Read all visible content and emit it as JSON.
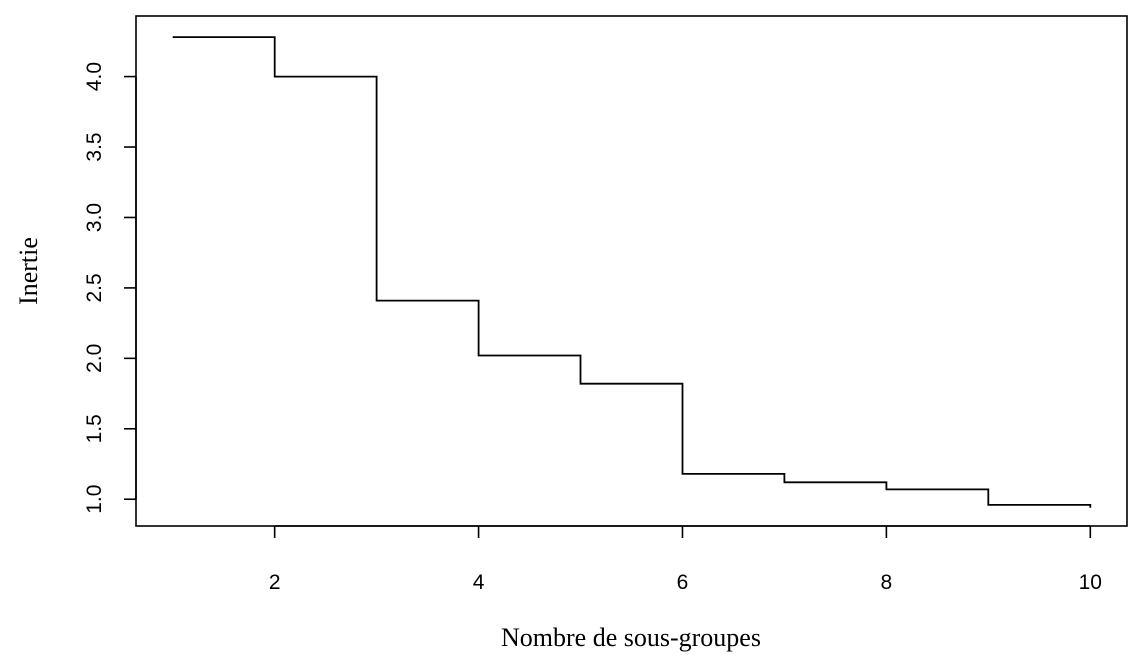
{
  "chart_data": {
    "type": "line",
    "step": true,
    "title": "",
    "xlabel": "Nombre de sous-groupes",
    "ylabel": "Inertie",
    "x": [
      1,
      2,
      3,
      4,
      5,
      6,
      7,
      8,
      9,
      10
    ],
    "y": [
      4.28,
      4.0,
      2.41,
      2.02,
      1.82,
      1.18,
      1.12,
      1.07,
      0.96,
      0.94
    ],
    "xlim": [
      0.64,
      10.36
    ],
    "ylim": [
      0.81,
      4.43
    ],
    "xticks": [
      2,
      4,
      6,
      8,
      10
    ],
    "xtick_labels": [
      "2",
      "4",
      "6",
      "8",
      "10"
    ],
    "yticks": [
      1.0,
      1.5,
      2.0,
      2.5,
      3.0,
      3.5,
      4.0
    ],
    "ytick_labels": [
      "1.0",
      "1.5",
      "2.0",
      "2.5",
      "3.0",
      "3.5",
      "4.0"
    ],
    "grid": false,
    "legend": false,
    "line_color": "#000000"
  }
}
